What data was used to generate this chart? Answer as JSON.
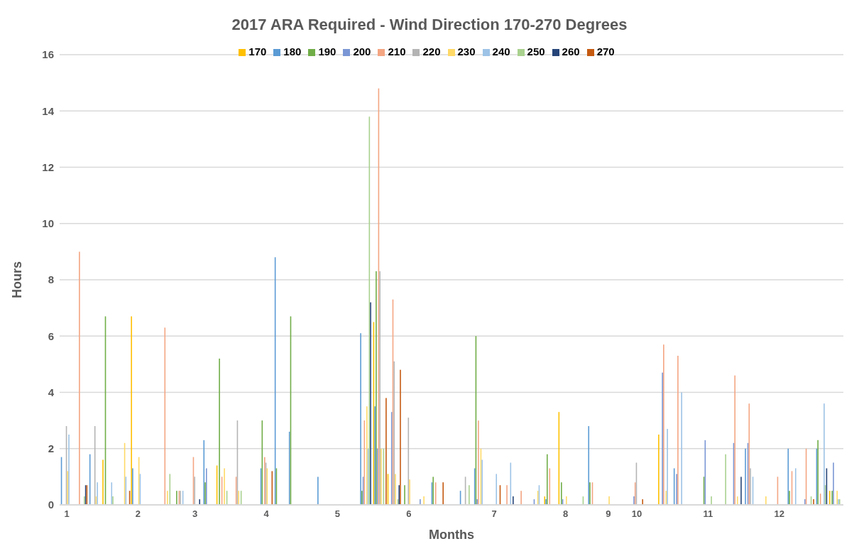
{
  "chart_data": {
    "type": "bar",
    "title": "2017 ARA Required - Wind Direction 170-270 Degrees",
    "xlabel": "Months",
    "ylabel": "Hours",
    "categories": [
      "1",
      null,
      null,
      null,
      null,
      "2",
      null,
      null,
      null,
      "3",
      null,
      null,
      null,
      null,
      "4",
      null,
      null,
      null,
      null,
      "5",
      null,
      null,
      null,
      null,
      "6",
      null,
      null,
      null,
      null,
      null,
      "7",
      null,
      null,
      null,
      null,
      "8",
      null,
      null,
      "9",
      null,
      "10",
      null,
      null,
      null,
      null,
      "11",
      null,
      null,
      null,
      null,
      "12",
      null,
      null,
      null,
      null
    ],
    "ylim": [
      0,
      16
    ],
    "yticks": [
      0,
      2,
      4,
      6,
      8,
      10,
      12,
      14,
      16
    ],
    "grid": "y",
    "legend": "top",
    "series": [
      {
        "name": "170",
        "color": "#ffc000",
        "values": [
          0,
          0,
          0,
          1.6,
          0,
          6.7,
          0,
          0,
          0,
          0,
          0,
          1.4,
          0,
          0,
          0,
          0,
          0,
          0,
          0,
          0,
          0,
          0,
          6.5,
          1.1,
          0,
          0,
          0,
          0,
          0,
          0,
          0,
          0,
          0,
          0,
          0.3,
          3.3,
          0,
          0,
          0,
          0,
          0,
          0,
          2.5,
          0,
          0,
          0,
          0,
          0,
          0,
          0,
          0,
          0,
          0,
          0,
          0.5
        ]
      },
      {
        "name": "180",
        "color": "#5b9bd5",
        "values": [
          1.7,
          0,
          1.8,
          0,
          0,
          1.3,
          0,
          0,
          0,
          0,
          2.3,
          0,
          0,
          0,
          1.3,
          8.8,
          2.6,
          0,
          1.0,
          0,
          0,
          6.1,
          3.5,
          0,
          0,
          0,
          0.8,
          0,
          0.5,
          1.3,
          0,
          0,
          0,
          0,
          0.2,
          0,
          0,
          2.8,
          0,
          0,
          0,
          0,
          0,
          1.3,
          0,
          0,
          0,
          0,
          2.0,
          0,
          0,
          2.0,
          0,
          2.0,
          0
        ]
      },
      {
        "name": "190",
        "color": "#70ad47",
        "values": [
          0,
          0,
          0,
          6.7,
          0,
          0,
          0,
          0,
          0.5,
          0,
          0.8,
          5.2,
          0,
          0,
          3.0,
          1.3,
          6.7,
          0,
          0,
          0,
          0,
          0.5,
          8.3,
          0,
          0.7,
          0,
          1.0,
          0,
          0,
          6.0,
          0,
          0,
          0,
          0,
          1.8,
          0.8,
          0,
          0.8,
          0,
          0,
          0,
          0,
          0,
          0,
          0,
          1.0,
          0,
          0,
          0,
          0,
          0,
          0.5,
          0,
          2.3,
          0.5
        ]
      },
      {
        "name": "200",
        "color": "#7a96d4",
        "values": [
          0,
          0,
          0,
          0,
          0,
          0,
          0,
          0,
          0,
          0,
          1.3,
          0,
          0,
          0,
          0,
          0,
          0,
          0,
          0,
          0,
          0,
          1.0,
          2.0,
          3.3,
          0,
          0.2,
          0,
          0,
          0,
          0.2,
          0,
          0,
          0,
          0.2,
          0,
          0.2,
          0,
          0,
          0,
          0,
          0.3,
          0,
          4.7,
          1.1,
          0,
          2.3,
          0,
          2.2,
          2.2,
          0,
          0,
          0,
          0.2,
          0,
          1.5
        ]
      },
      {
        "name": "210",
        "color": "#f4a582",
        "values": [
          0,
          9.0,
          0,
          0,
          0,
          0,
          0,
          6.3,
          0.5,
          1.7,
          0,
          1.0,
          1.0,
          0,
          1.7,
          0,
          0,
          0,
          0,
          0,
          0,
          3.0,
          14.8,
          7.3,
          0,
          0,
          0.8,
          0,
          0,
          3.0,
          0,
          0.7,
          0.5,
          0,
          1.3,
          0,
          0,
          0.8,
          0,
          0,
          0.8,
          0,
          5.7,
          5.3,
          0,
          0,
          0,
          4.6,
          3.6,
          0,
          1.0,
          1.2,
          2.0,
          0.4,
          0
        ]
      },
      {
        "name": "220",
        "color": "#b4b4b4",
        "values": [
          2.8,
          0,
          2.8,
          0,
          0,
          0,
          0,
          0,
          0.5,
          1.0,
          0,
          0,
          3.0,
          0,
          1.5,
          0,
          0,
          0,
          0,
          0,
          0,
          0,
          8.3,
          5.1,
          3.1,
          0,
          0,
          0,
          1.0,
          0,
          0,
          0,
          0,
          0,
          0,
          0,
          0,
          0,
          0,
          0,
          1.5,
          null,
          0,
          null,
          0,
          0,
          0,
          0,
          1.3,
          0,
          0,
          0,
          0,
          0,
          0
        ]
      },
      {
        "name": "230",
        "color": "#ffd966",
        "values": [
          1.2,
          0,
          0.3,
          0,
          2.2,
          1.7,
          0,
          0.5,
          0,
          0,
          0,
          1.3,
          0.5,
          0,
          1.3,
          0,
          0,
          0,
          0,
          0,
          0,
          3.5,
          2.0,
          1.1,
          0.9,
          0.3,
          0,
          0,
          0,
          2.0,
          0,
          0,
          0,
          0.5,
          0,
          0.3,
          0,
          0,
          0.3,
          0,
          0,
          0,
          0.5,
          0,
          0,
          0,
          0,
          0.3,
          0,
          0.3,
          0,
          0,
          0,
          0,
          0.5
        ]
      },
      {
        "name": "240",
        "color": "#9dc3e6",
        "values": [
          2.5,
          0,
          0.8,
          0.8,
          1.0,
          1.1,
          0,
          0,
          0.5,
          0,
          0,
          0,
          0,
          0,
          0,
          0,
          0,
          0,
          0,
          0,
          0,
          2.0,
          0,
          0,
          0,
          0,
          0,
          0,
          0,
          1.6,
          1.1,
          1.5,
          0,
          0.7,
          0,
          0,
          0,
          0,
          0,
          0,
          0,
          0,
          2.7,
          4.0,
          0,
          0,
          0,
          0,
          1.0,
          0,
          0,
          1.3,
          0,
          3.6,
          0.2
        ]
      },
      {
        "name": "250",
        "color": "#a9d18e",
        "values": [
          0,
          0.3,
          0,
          0.3,
          0,
          0,
          0,
          1.1,
          0,
          0,
          0,
          0.5,
          0.5,
          0,
          0,
          0,
          0,
          0,
          0,
          0,
          0,
          13.8,
          2.0,
          0.2,
          0,
          0,
          0,
          0,
          0.7,
          0,
          0,
          0,
          0,
          0,
          0,
          0,
          0.3,
          0,
          null,
          0,
          0,
          0,
          0,
          0,
          0,
          0.3,
          1.8,
          0,
          0,
          0,
          0,
          0,
          0.3,
          0.7,
          0.2
        ]
      },
      {
        "name": "260",
        "color": "#264478",
        "values": [
          0,
          0.7,
          0,
          0,
          0,
          0,
          0,
          0,
          0,
          0.2,
          0,
          0,
          0,
          0,
          0,
          0,
          0,
          0,
          0,
          0,
          0,
          7.2,
          0,
          0.7,
          0,
          0,
          0,
          0,
          0,
          0,
          0,
          0.3,
          0,
          0,
          0,
          0,
          0,
          0,
          0,
          0,
          0,
          0,
          0,
          0,
          0,
          0,
          0,
          1.0,
          0,
          0,
          0,
          0,
          0,
          1.3,
          0
        ]
      },
      {
        "name": "270",
        "color": "#c55a11",
        "values": [
          0,
          0.7,
          0,
          0,
          0.5,
          0,
          0,
          0,
          0,
          0,
          0,
          0,
          0,
          0,
          1.2,
          0,
          0,
          0,
          0,
          0,
          0,
          0,
          3.8,
          4.8,
          0,
          0,
          0.8,
          0,
          0,
          0,
          0.7,
          null,
          0,
          0,
          0,
          0,
          0,
          0,
          0,
          0,
          0.2,
          0,
          0,
          0,
          0,
          0,
          0,
          0,
          0,
          0,
          0,
          0,
          0.2,
          0,
          0
        ]
      }
    ]
  }
}
